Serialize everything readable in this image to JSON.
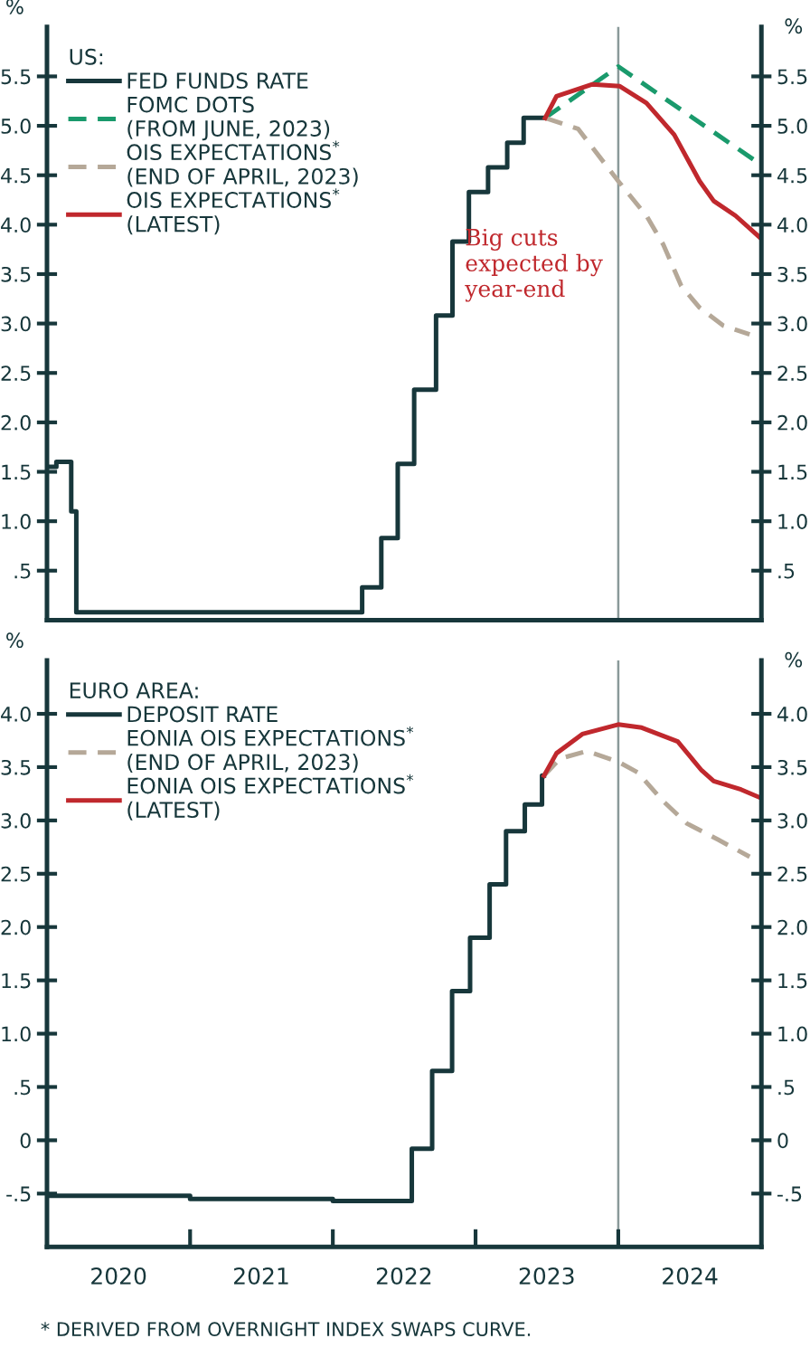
{
  "chart_data": [
    {
      "type": "step",
      "legend_title": "US:",
      "ylabel": "%",
      "y2label": "%",
      "xlim": [
        "2020-01-01",
        "2025-01-01"
      ],
      "ylim": [
        0,
        6
      ],
      "yticks": [
        {
          "value": 0.5,
          "label": ".5"
        },
        {
          "value": 1,
          "label": "1.0"
        },
        {
          "value": 1.5,
          "label": "1.5"
        },
        {
          "value": 2,
          "label": "2.0"
        },
        {
          "value": 2.5,
          "label": "2.5"
        },
        {
          "value": 3,
          "label": "3.0"
        },
        {
          "value": 3.5,
          "label": "3.5"
        },
        {
          "value": 4,
          "label": "4.0"
        },
        {
          "value": 4.5,
          "label": "4.5"
        },
        {
          "value": 5,
          "label": "5.0"
        },
        {
          "value": 5.5,
          "label": "5.5"
        }
      ],
      "y2lim": [
        0,
        6
      ],
      "y2ticks": [
        {
          "value": 0.5,
          "label": ".5"
        },
        {
          "value": 1,
          "label": "1.0"
        },
        {
          "value": 1.5,
          "label": "1.5"
        },
        {
          "value": 2,
          "label": "2.0"
        },
        {
          "value": 2.5,
          "label": "2.5"
        },
        {
          "value": 3,
          "label": "3.0"
        },
        {
          "value": 3.5,
          "label": "3.5"
        },
        {
          "value": 4,
          "label": "4.0"
        },
        {
          "value": 4.5,
          "label": "4.5"
        },
        {
          "value": 5,
          "label": "5.0"
        },
        {
          "value": 5.5,
          "label": "5.5"
        }
      ],
      "tick_labels": "y",
      "legend": "top left",
      "grid": false,
      "series": [
        {
          "name": "FED FUNDS RATE",
          "color": "#17373b",
          "line_style": "solid",
          "x": [
            "2020-01-01",
            "2020-01-25",
            "2020-03-03",
            "2020-03-16",
            "2021-01-01",
            "2022-03-17",
            "2022-05-05",
            "2022-06-16",
            "2022-07-28",
            "2022-09-22",
            "2022-11-03",
            "2022-12-15",
            "2023-02-02",
            "2023-03-23",
            "2023-05-04",
            "2023-06-28"
          ],
          "values": [
            1.55,
            1.6,
            1.1,
            0.08,
            0.08,
            0.33,
            0.83,
            1.58,
            2.33,
            3.08,
            3.83,
            4.33,
            4.58,
            4.83,
            5.08,
            5.08
          ]
        },
        {
          "name": "FOMC DOTS\n(FROM JUNE, 2023)",
          "type": "line",
          "color": "#1a9a6c",
          "line_style": "dashed",
          "x": [
            "2023-06-28",
            "2024-01-01",
            "2024-12-15"
          ],
          "values": [
            5.08,
            5.6,
            4.65
          ]
        },
        {
          "name": "OIS EXPECTATIONS$^{*}$\n(END OF APRIL, 2023)",
          "type": "line",
          "color": "#b5a898",
          "line_style": "dashed",
          "x": [
            "2023-06-28",
            "2023-09-20",
            "2024-01-01",
            "2024-03-13",
            "2024-04-25",
            "2024-06-10",
            "2024-07-27",
            "2024-09-25",
            "2024-12-02"
          ],
          "values": [
            5.08,
            4.97,
            4.44,
            4.09,
            3.8,
            3.38,
            3.16,
            2.98,
            2.89
          ]
        },
        {
          "name": "OIS EXPECTATIONS$^{*}$\n(LATEST)",
          "type": "line",
          "color": "#c0282d",
          "line_style": "solid",
          "x": [
            "2023-06-28",
            "2023-07-27",
            "2023-10-27",
            "2024-01-05",
            "2024-03-13",
            "2024-05-23",
            "2024-07-27",
            "2024-09-01",
            "2024-10-27",
            "2024-12-31"
          ],
          "values": [
            5.08,
            5.3,
            5.42,
            5.4,
            5.23,
            4.91,
            4.44,
            4.24,
            4.09,
            3.86
          ]
        }
      ],
      "ref_lines": [
        {
          "axis": "x",
          "value": "2024-01-01",
          "color": "#8a9a9a",
          "line_style": "solid"
        }
      ],
      "annotations": [
        "Big cuts\nexpected by\nyear-end"
      ]
    },
    {
      "type": "step",
      "legend_title": "EURO AREA:",
      "ylabel": "%",
      "y2label": "%",
      "xlim": [
        "2020-01-01",
        "2025-01-01"
      ],
      "xticks": [
        {
          "value": "2020-07-02",
          "label": "2020"
        },
        {
          "value": "2021-07-02",
          "label": "2021"
        },
        {
          "value": "2022-07-02",
          "label": "2022"
        },
        {
          "value": "2023-07-02",
          "label": "2023"
        },
        {
          "value": "2024-07-02",
          "label": "2024"
        },
        {
          "value": "2021-01-01",
          "label": null
        },
        {
          "value": "2022-01-01",
          "label": null
        },
        {
          "value": "2023-01-01",
          "label": null
        },
        {
          "value": "2024-01-01",
          "label": null
        }
      ],
      "ylim": [
        -1,
        4.5
      ],
      "yticks": [
        {
          "value": -0.5,
          "label": "-.5"
        },
        0,
        {
          "value": 0.5,
          "label": ".5"
        },
        {
          "value": 1,
          "label": "1.0"
        },
        {
          "value": 1.5,
          "label": "1.5"
        },
        {
          "value": 2,
          "label": "2.0"
        },
        {
          "value": 2.5,
          "label": "2.5"
        },
        {
          "value": 3,
          "label": "3.0"
        },
        {
          "value": 3.5,
          "label": "3.5"
        },
        {
          "value": 4,
          "label": "4.0"
        }
      ],
      "y2lim": [
        -1,
        4.5
      ],
      "y2ticks": [
        {
          "value": -0.5,
          "label": "-.5"
        },
        0,
        {
          "value": 0.5,
          "label": ".5"
        },
        {
          "value": 1,
          "label": "1.0"
        },
        {
          "value": 1.5,
          "label": "1.5"
        },
        {
          "value": 2,
          "label": "2.0"
        },
        {
          "value": 2.5,
          "label": "2.5"
        },
        {
          "value": 3,
          "label": "3.0"
        },
        {
          "value": 3.5,
          "label": "3.5"
        },
        {
          "value": 4,
          "label": "4.0"
        }
      ],
      "legend": "top left",
      "grid": false,
      "series": [
        {
          "name": "DEPOSIT RATE",
          "color": "#17373b",
          "line_style": "solid",
          "x": [
            "2020-01-01",
            "2021-01-01",
            "2022-01-01",
            "2022-07-22",
            "2022-09-12",
            "2022-11-02",
            "2022-12-18",
            "2023-02-06",
            "2023-03-20",
            "2023-05-07",
            "2023-06-20",
            "2023-06-25"
          ],
          "values": [
            -0.52,
            -0.55,
            -0.57,
            -0.08,
            0.65,
            1.4,
            1.9,
            2.4,
            2.9,
            3.15,
            3.42,
            3.42
          ]
        },
        {
          "name": "EONIA OIS EXPECTATIONS$^{*}$\n(END OF APRIL, 2023)",
          "type": "line",
          "color": "#b5a898",
          "line_style": "dashed",
          "x": [
            "2023-06-25",
            "2023-08-05",
            "2023-10-13",
            "2024-01-01",
            "2024-02-20",
            "2024-04-25",
            "2024-06-25",
            "2024-09-12",
            "2024-12-02"
          ],
          "values": [
            3.42,
            3.58,
            3.65,
            3.55,
            3.45,
            3.18,
            2.97,
            2.82,
            2.66
          ]
        },
        {
          "name": "EONIA OIS EXPECTATIONS$^{*}$\n(LATEST)",
          "type": "line",
          "color": "#c0282d",
          "line_style": "solid",
          "x": [
            "2023-06-25",
            "2023-07-27",
            "2023-10-01",
            "2024-01-01",
            "2024-03-01",
            "2024-06-01",
            "2024-08-01",
            "2024-09-01",
            "2024-11-10",
            "2024-12-31"
          ],
          "values": [
            3.42,
            3.63,
            3.81,
            3.9,
            3.87,
            3.74,
            3.47,
            3.37,
            3.29,
            3.21
          ]
        }
      ],
      "ref_lines": [
        {
          "axis": "x",
          "value": "2024-01-01",
          "color": "#8a9a9a",
          "line_style": "solid"
        }
      ],
      "annotations": [
        "* DERIVED FROM OVERNIGHT INDEX SWAPS CURVE."
      ]
    }
  ]
}
